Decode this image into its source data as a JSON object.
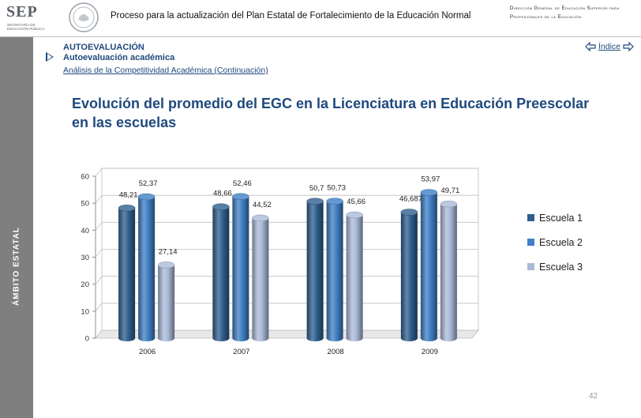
{
  "header": {
    "logo_text": "SEP",
    "logo_subtext": "SECRETARÍA DE EDUCACIÓN PÚBLICA",
    "title": "Proceso para la actualización del Plan Estatal de Fortalecimiento de la Educación Normal",
    "right_text": "Dirección General de Educación Superior para Profesionales de la Educación"
  },
  "sidebar": {
    "label": "ÁMBITO ESTATAL"
  },
  "section": {
    "title": "AUTOEVALUACIÓN",
    "subtitle": "Autoevaluación académica",
    "link": "Análisis de la Competitividad Académica (Continuación)"
  },
  "nav": {
    "index_label": "Índice"
  },
  "page_number": "42",
  "colors": {
    "accent": "#1f497d",
    "sidebar": "#7f7f7f"
  },
  "chart_data": {
    "type": "bar",
    "title": "Evolución del promedio del EGC en la Licenciatura en Educación Preescolar en las escuelas",
    "categories": [
      "2006",
      "2007",
      "2008",
      "2009"
    ],
    "series": [
      {
        "name": "Escuela 1",
        "values": [
          48.21,
          48.66,
          50.7,
          46.687
        ],
        "labels": [
          "48,21",
          "48,66",
          "50,7",
          "46,687"
        ],
        "color": "#2f5f8f"
      },
      {
        "name": "Escuela 2",
        "values": [
          52.37,
          52.46,
          50.73,
          53.97
        ],
        "labels": [
          "52,37",
          "52,46",
          "50,73",
          "53,97"
        ],
        "color": "#3f7fc4"
      },
      {
        "name": "Escuela 3",
        "values": [
          27.14,
          44.52,
          45.66,
          49.71
        ],
        "labels": [
          "27,14",
          "44,52",
          "45,66",
          "49,71"
        ],
        "color": "#a9bad8"
      }
    ],
    "ylim": [
      0,
      60
    ],
    "yticks": [
      "0",
      "10",
      "20",
      "30",
      "40",
      "50",
      "60"
    ],
    "grid": true,
    "legend": "right",
    "style": "3d-cylinder"
  }
}
